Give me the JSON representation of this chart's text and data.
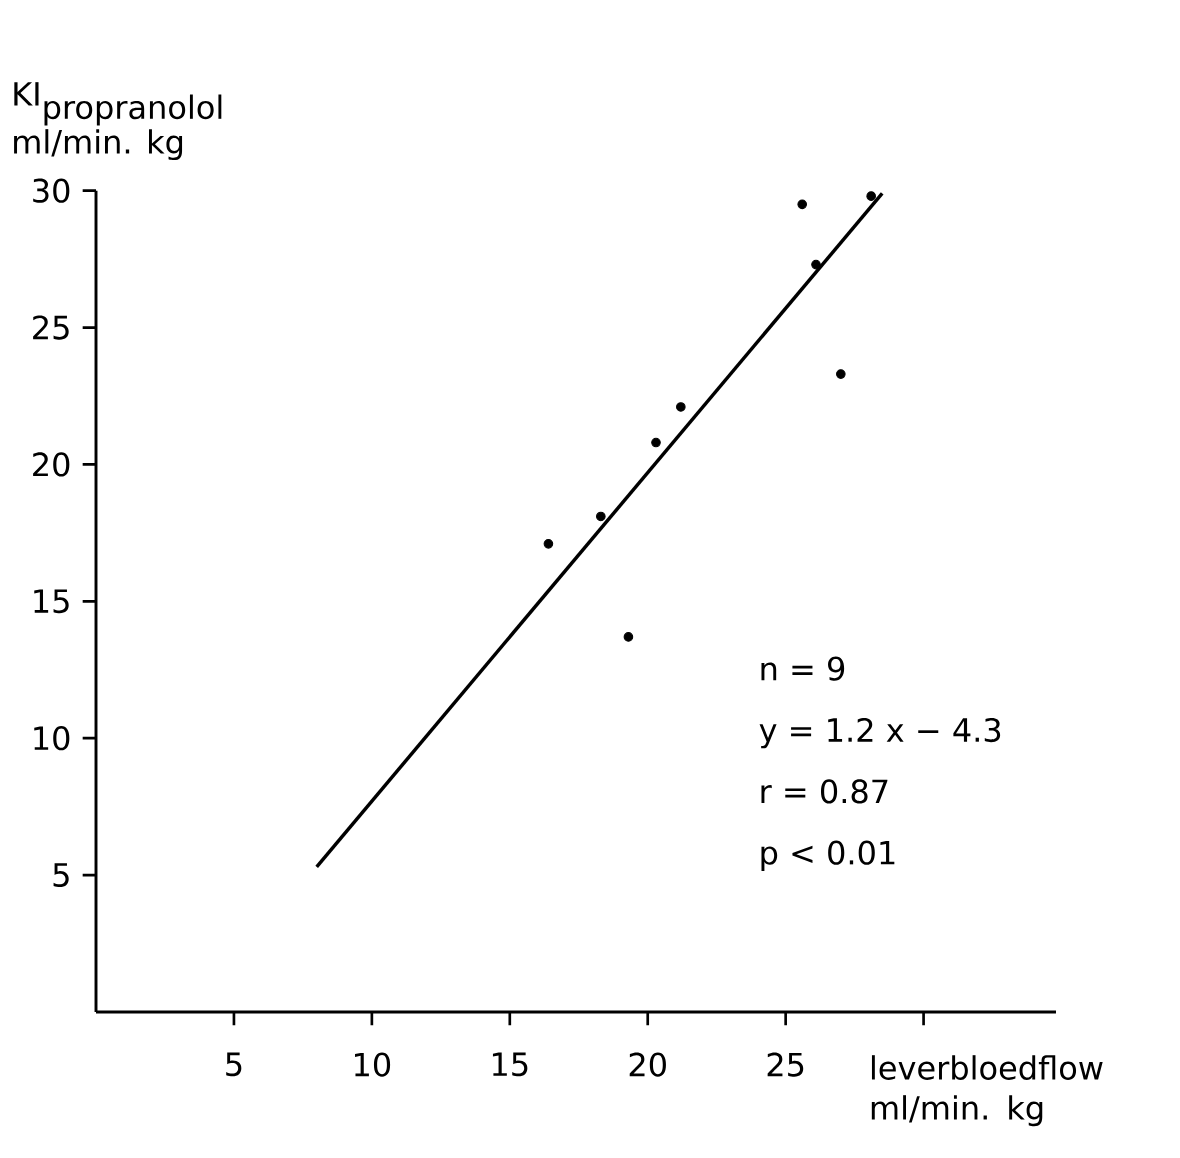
{
  "chart_data": {
    "type": "scatter",
    "xlabel": "leverbloedflow ml/min. kg",
    "ylabel": "\\begin{array}{@{}l@{}}\\mbox{KI}_{\\mbox{propranolol}}\\\\ \\mbox{ml/min. kg}\\end{array}",
    "xlim": [
      0,
      34.8
    ],
    "ylim": [
      0,
      30
    ],
    "xticks": [
      5,
      10,
      15,
      20,
      25,
      {
        "value": 30,
        "label": null
      }
    ],
    "yticks": [
      5,
      10,
      15,
      20,
      25,
      30
    ],
    "series": [
      {
        "marker": "circle",
        "color": "#000000",
        "x": [
          25.6,
          28.1,
          26.1,
          27.0,
          21.2,
          20.3,
          18.3,
          16.4,
          19.3
        ],
        "values": [
          29.5,
          29.8,
          27.3,
          23.3,
          22.1,
          20.8,
          18.1,
          17.1,
          13.7
        ]
      },
      {
        "type": "line",
        "marker": "none",
        "color": "#000000",
        "line_style": "solid",
        "x": [
          8,
          28.5
        ],
        "values": [
          5.3,
          29.9
        ]
      }
    ],
    "annotations": [
      "n = 9",
      "y = 1.2 x − 4.3",
      "r = 0.87",
      "p < 0.01"
    ]
  }
}
